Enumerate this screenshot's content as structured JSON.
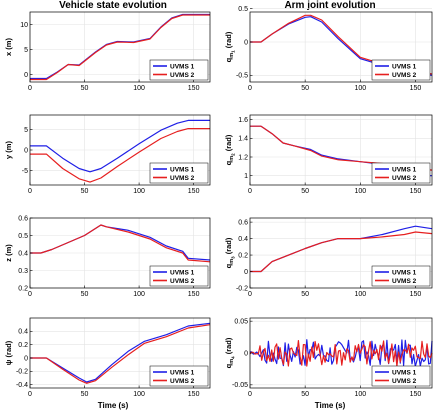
{
  "titles": {
    "left": "Vehicle state evolution",
    "right": "Arm joint evolution"
  },
  "xlabel": "Time (s)",
  "colors": {
    "uvms1": "#1f1fe6",
    "uvms2": "#e61f1f"
  },
  "chart_data": [
    {
      "type": "line",
      "ylabel": "x (m)",
      "xlim": [
        0,
        165
      ],
      "ylim": [
        -1.5,
        12.5
      ],
      "xticks": [
        0,
        50,
        100,
        150
      ],
      "yticks": [
        0,
        5,
        10
      ],
      "series": [
        {
          "name": "UVMS 1",
          "points": [
            [
              0,
              -0.8
            ],
            [
              15,
              -0.8
            ],
            [
              25,
              0.5
            ],
            [
              35,
              2.0
            ],
            [
              45,
              1.9
            ],
            [
              60,
              4.5
            ],
            [
              70,
              6.0
            ],
            [
              80,
              6.6
            ],
            [
              95,
              6.5
            ],
            [
              110,
              7.2
            ],
            [
              120,
              9.5
            ],
            [
              130,
              11.3
            ],
            [
              140,
              12.0
            ],
            [
              165,
              12.0
            ]
          ]
        },
        {
          "name": "UVMS 2",
          "points": [
            [
              0,
              -1.0
            ],
            [
              15,
              -1.0
            ],
            [
              25,
              0.4
            ],
            [
              35,
              2.0
            ],
            [
              45,
              1.8
            ],
            [
              60,
              4.4
            ],
            [
              70,
              5.9
            ],
            [
              80,
              6.5
            ],
            [
              95,
              6.4
            ],
            [
              110,
              7.1
            ],
            [
              120,
              9.4
            ],
            [
              130,
              11.2
            ],
            [
              140,
              11.9
            ],
            [
              165,
              11.9
            ]
          ]
        }
      ]
    },
    {
      "type": "line",
      "ylabel": "q_m1 (rad)",
      "xlim": [
        0,
        165
      ],
      "ylim": [
        -0.6,
        0.45
      ],
      "xticks": [
        0,
        50,
        100,
        150
      ],
      "yticks": [
        -0.5,
        0,
        0.5
      ],
      "series": [
        {
          "name": "UVMS 1",
          "points": [
            [
              0,
              0.0
            ],
            [
              10,
              0.0
            ],
            [
              20,
              0.12
            ],
            [
              35,
              0.27
            ],
            [
              50,
              0.37
            ],
            [
              55,
              0.38
            ],
            [
              65,
              0.3
            ],
            [
              80,
              0.05
            ],
            [
              100,
              -0.25
            ],
            [
              120,
              -0.35
            ],
            [
              140,
              -0.45
            ],
            [
              165,
              -0.5
            ]
          ]
        },
        {
          "name": "UVMS 2",
          "points": [
            [
              0,
              0.0
            ],
            [
              10,
              0.0
            ],
            [
              20,
              0.12
            ],
            [
              35,
              0.28
            ],
            [
              50,
              0.4
            ],
            [
              55,
              0.4
            ],
            [
              65,
              0.33
            ],
            [
              80,
              0.08
            ],
            [
              100,
              -0.23
            ],
            [
              120,
              -0.33
            ],
            [
              140,
              -0.42
            ],
            [
              165,
              -0.48
            ]
          ]
        }
      ]
    },
    {
      "type": "line",
      "ylabel": "y (m)",
      "xlim": [
        0,
        165
      ],
      "ylim": [
        -8.5,
        8.5
      ],
      "xticks": [
        0,
        50,
        100,
        150
      ],
      "yticks": [
        -5,
        0,
        5
      ],
      "series": [
        {
          "name": "UVMS 1",
          "points": [
            [
              0,
              1.0
            ],
            [
              15,
              1.0
            ],
            [
              30,
              -2.0
            ],
            [
              45,
              -4.5
            ],
            [
              55,
              -5.3
            ],
            [
              65,
              -4.5
            ],
            [
              80,
              -2.0
            ],
            [
              100,
              1.5
            ],
            [
              120,
              4.8
            ],
            [
              135,
              6.5
            ],
            [
              145,
              7.2
            ],
            [
              165,
              7.2
            ]
          ]
        },
        {
          "name": "UVMS 2",
          "points": [
            [
              0,
              -1.0
            ],
            [
              15,
              -1.0
            ],
            [
              30,
              -4.5
            ],
            [
              45,
              -7.0
            ],
            [
              55,
              -7.8
            ],
            [
              65,
              -6.8
            ],
            [
              80,
              -4.0
            ],
            [
              100,
              -0.5
            ],
            [
              120,
              2.8
            ],
            [
              135,
              4.5
            ],
            [
              145,
              5.2
            ],
            [
              165,
              5.2
            ]
          ]
        }
      ]
    },
    {
      "type": "line",
      "ylabel": "q_m2 (rad)",
      "xlim": [
        0,
        165
      ],
      "ylim": [
        0.9,
        1.65
      ],
      "xticks": [
        0,
        50,
        100,
        150
      ],
      "yticks": [
        1,
        1.2,
        1.4,
        1.6
      ],
      "series": [
        {
          "name": "UVMS 1",
          "points": [
            [
              0,
              1.53
            ],
            [
              10,
              1.53
            ],
            [
              20,
              1.45
            ],
            [
              30,
              1.35
            ],
            [
              40,
              1.32
            ],
            [
              55,
              1.28
            ],
            [
              65,
              1.22
            ],
            [
              80,
              1.18
            ],
            [
              100,
              1.15
            ],
            [
              120,
              1.12
            ],
            [
              140,
              1.05
            ],
            [
              150,
              1.0
            ],
            [
              165,
              1.0
            ]
          ]
        },
        {
          "name": "UVMS 2",
          "points": [
            [
              0,
              1.53
            ],
            [
              10,
              1.53
            ],
            [
              20,
              1.45
            ],
            [
              30,
              1.35
            ],
            [
              40,
              1.32
            ],
            [
              55,
              1.27
            ],
            [
              65,
              1.21
            ],
            [
              80,
              1.17
            ],
            [
              100,
              1.15
            ],
            [
              120,
              1.13
            ],
            [
              140,
              1.1
            ],
            [
              150,
              1.08
            ],
            [
              165,
              1.06
            ]
          ]
        }
      ]
    },
    {
      "type": "line",
      "ylabel": "z (m)",
      "xlim": [
        0,
        165
      ],
      "ylim": [
        0.2,
        0.6
      ],
      "xticks": [
        0,
        50,
        100,
        150
      ],
      "yticks": [
        0.2,
        0.3,
        0.4,
        0.5,
        0.6
      ],
      "series": [
        {
          "name": "UVMS 1",
          "points": [
            [
              0,
              0.4
            ],
            [
              10,
              0.4
            ],
            [
              20,
              0.42
            ],
            [
              35,
              0.46
            ],
            [
              50,
              0.5
            ],
            [
              65,
              0.56
            ],
            [
              70,
              0.55
            ],
            [
              90,
              0.53
            ],
            [
              110,
              0.49
            ],
            [
              125,
              0.44
            ],
            [
              140,
              0.41
            ],
            [
              145,
              0.37
            ],
            [
              165,
              0.36
            ]
          ]
        },
        {
          "name": "UVMS 2",
          "points": [
            [
              0,
              0.4
            ],
            [
              10,
              0.4
            ],
            [
              20,
              0.42
            ],
            [
              35,
              0.46
            ],
            [
              50,
              0.5
            ],
            [
              65,
              0.56
            ],
            [
              70,
              0.55
            ],
            [
              90,
              0.52
            ],
            [
              110,
              0.48
            ],
            [
              125,
              0.43
            ],
            [
              140,
              0.4
            ],
            [
              145,
              0.36
            ],
            [
              165,
              0.35
            ]
          ]
        }
      ]
    },
    {
      "type": "line",
      "ylabel": "q_m3 (rad)",
      "xlim": [
        0,
        165
      ],
      "ylim": [
        -0.2,
        0.65
      ],
      "xticks": [
        0,
        50,
        100,
        150
      ],
      "yticks": [
        -0.2,
        0,
        0.2,
        0.4,
        0.6
      ],
      "series": [
        {
          "name": "UVMS 1",
          "points": [
            [
              0,
              0.0
            ],
            [
              10,
              0.0
            ],
            [
              20,
              0.12
            ],
            [
              35,
              0.2
            ],
            [
              50,
              0.28
            ],
            [
              65,
              0.35
            ],
            [
              80,
              0.4
            ],
            [
              100,
              0.4
            ],
            [
              120,
              0.45
            ],
            [
              140,
              0.52
            ],
            [
              150,
              0.55
            ],
            [
              165,
              0.52
            ]
          ]
        },
        {
          "name": "UVMS 2",
          "points": [
            [
              0,
              0.0
            ],
            [
              10,
              0.0
            ],
            [
              20,
              0.12
            ],
            [
              35,
              0.2
            ],
            [
              50,
              0.28
            ],
            [
              65,
              0.35
            ],
            [
              80,
              0.4
            ],
            [
              100,
              0.4
            ],
            [
              120,
              0.42
            ],
            [
              140,
              0.45
            ],
            [
              150,
              0.48
            ],
            [
              165,
              0.46
            ]
          ]
        }
      ]
    },
    {
      "type": "line",
      "ylabel": "ψ (rad)",
      "xlim": [
        0,
        165
      ],
      "ylim": [
        -0.45,
        0.6
      ],
      "xticks": [
        0,
        50,
        100,
        150
      ],
      "yticks": [
        -0.4,
        -0.2,
        0,
        0.2,
        0.4
      ],
      "series": [
        {
          "name": "UVMS 1",
          "points": [
            [
              0,
              0.0
            ],
            [
              15,
              0.0
            ],
            [
              30,
              -0.15
            ],
            [
              45,
              -0.3
            ],
            [
              52,
              -0.36
            ],
            [
              60,
              -0.32
            ],
            [
              75,
              -0.1
            ],
            [
              90,
              0.1
            ],
            [
              105,
              0.25
            ],
            [
              125,
              0.35
            ],
            [
              145,
              0.48
            ],
            [
              165,
              0.52
            ]
          ]
        },
        {
          "name": "UVMS 2",
          "points": [
            [
              0,
              0.0
            ],
            [
              15,
              0.0
            ],
            [
              30,
              -0.17
            ],
            [
              45,
              -0.33
            ],
            [
              52,
              -0.38
            ],
            [
              60,
              -0.34
            ],
            [
              75,
              -0.14
            ],
            [
              90,
              0.05
            ],
            [
              105,
              0.22
            ],
            [
              125,
              0.32
            ],
            [
              145,
              0.45
            ],
            [
              165,
              0.5
            ]
          ]
        }
      ]
    },
    {
      "type": "line",
      "ylabel": "q_m4 (rad)",
      "xlim": [
        0,
        165
      ],
      "ylim": [
        -0.055,
        0.055
      ],
      "xticks": [
        0,
        50,
        100,
        150
      ],
      "yticks": [
        -0.05,
        0,
        0.05
      ],
      "noisy": true,
      "series": [
        {
          "name": "UVMS 1",
          "points": [
            [
              0,
              0.0
            ],
            [
              165,
              0.0
            ]
          ]
        },
        {
          "name": "UVMS 2",
          "points": [
            [
              0,
              0.0
            ],
            [
              165,
              0.0
            ]
          ]
        }
      ]
    }
  ]
}
